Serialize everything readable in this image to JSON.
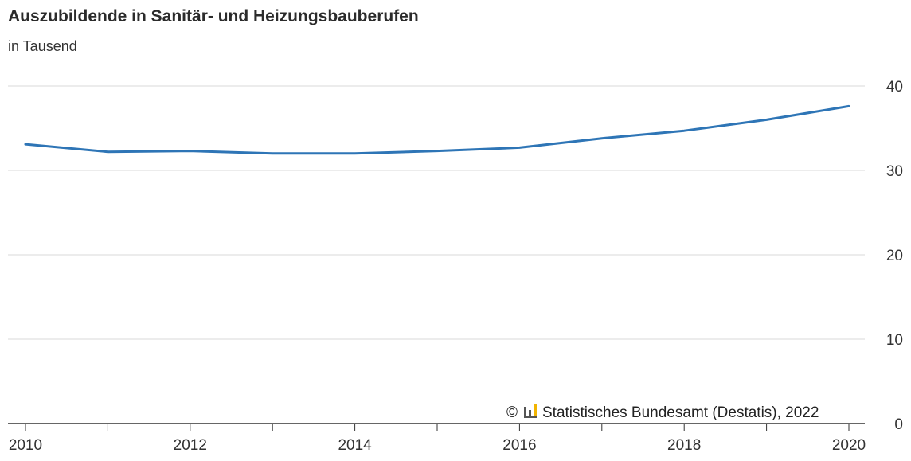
{
  "header": {
    "title": "Auszubildende in Sanitär- und Heizungsbauberufen",
    "subtitle": "in Tausend"
  },
  "source": {
    "copyright_symbol": "©",
    "text": "Statistisches Bundesamt (Destatis), 2022"
  },
  "colors": {
    "line": "#2e75b6",
    "grid": "#d9d9d9",
    "axis": "#333333",
    "logo_yellow": "#f2b400",
    "logo_gray": "#555555"
  },
  "chart_data": {
    "type": "line",
    "title": "Auszubildende in Sanitär- und Heizungsbauberufen",
    "subtitle": "in Tausend",
    "xlabel": "",
    "ylabel": "",
    "x": [
      2010,
      2011,
      2012,
      2013,
      2014,
      2015,
      2016,
      2017,
      2018,
      2019,
      2020
    ],
    "series": [
      {
        "values": [
          33.1,
          32.2,
          32.3,
          32.0,
          32.0,
          32.3,
          32.7,
          33.8,
          34.7,
          36.0,
          37.6
        ]
      }
    ],
    "xlim": [
      2010,
      2020
    ],
    "ylim": [
      0,
      40
    ],
    "x_ticks": [
      2010,
      2012,
      2014,
      2016,
      2018,
      2020
    ],
    "y_ticks": [
      0,
      10,
      20,
      30,
      40
    ],
    "y_axis_side": "right",
    "grid": true
  }
}
